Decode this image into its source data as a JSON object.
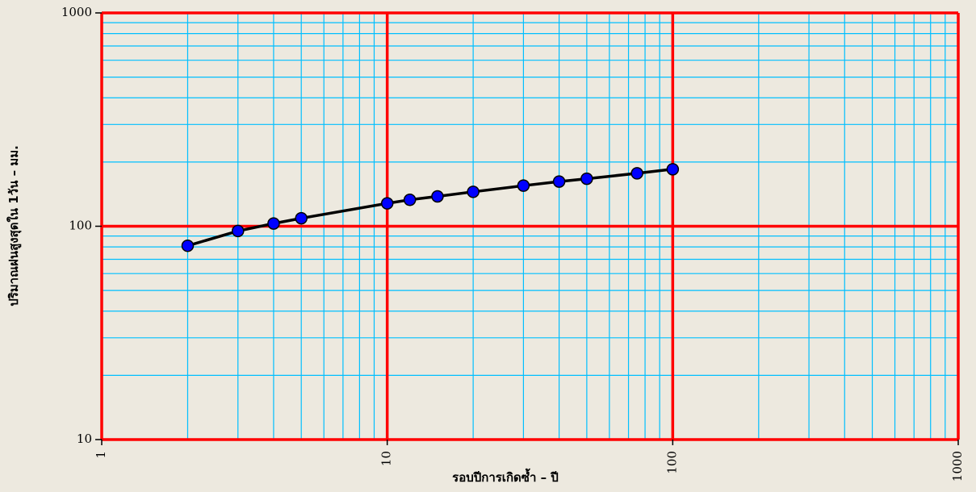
{
  "chart_data": {
    "type": "line",
    "x_scale": "log",
    "y_scale": "log",
    "xlim": [
      1,
      1000
    ],
    "ylim": [
      10,
      1000
    ],
    "xlabel": "รอบปีการเกิดซ้ำ – ปี",
    "ylabel": "ปริมาณฝนสูงสุดใน 1วัน – มม.",
    "x_ticks": [
      "1",
      "10",
      "100",
      "1000"
    ],
    "y_ticks": [
      "10",
      "100",
      "1000"
    ],
    "grid": true,
    "colors": {
      "background": "#ede9df",
      "major_grid": "#ff0000",
      "minor_grid": "#00bfff",
      "line": "#000000",
      "marker_fill": "#0000ff",
      "marker_edge": "#000000"
    },
    "series": [
      {
        "x": [
          2,
          3,
          4,
          5,
          10,
          12,
          15,
          20,
          30,
          40,
          50,
          75,
          100
        ],
        "values": [
          81,
          95,
          103,
          109,
          128,
          133,
          138,
          145,
          155,
          162,
          167,
          177,
          185
        ]
      }
    ]
  }
}
